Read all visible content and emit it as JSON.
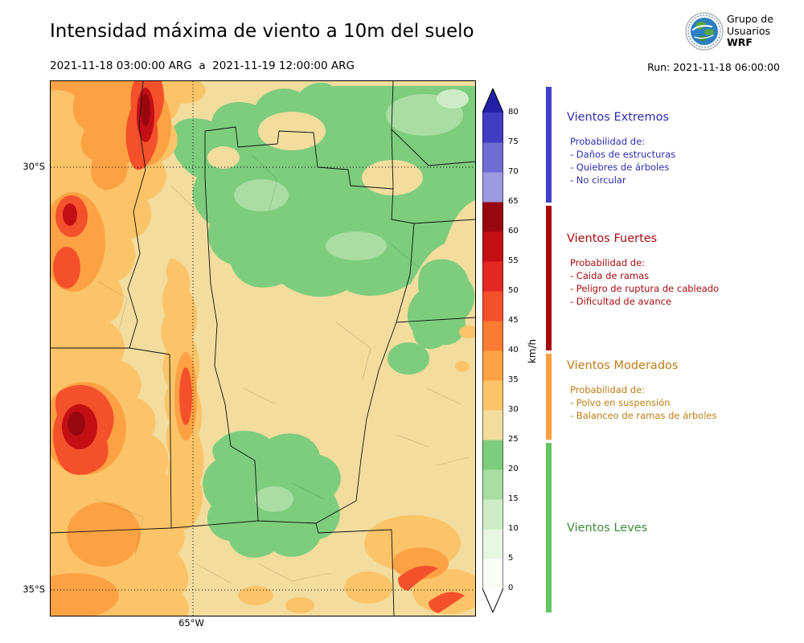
{
  "header": {
    "title": "Intensidad máxima de viento a 10m del suelo",
    "subtitle": "2021-11-18 03:00:00 ARG  a  2021-11-19 12:00:00 ARG",
    "run_label": "Run: 2021-11-18 06:00:00",
    "logo": {
      "line1": "Grupo de",
      "line2": "Usuarios",
      "line3": "WRF"
    }
  },
  "map": {
    "labels": {
      "lat_top": "30°S",
      "lat_bottom": "35°S",
      "lon": "65°W"
    }
  },
  "chart_data": {
    "type": "heatmap",
    "title": "Intensidad máxima de viento a 10m del suelo",
    "period": {
      "start": "2021-11-18 03:00:00 ARG",
      "end": "2021-11-19 12:00:00 ARG"
    },
    "model_run": "2021-11-18 06:00:00",
    "colorbar": {
      "label": "km/h",
      "ticks": [
        0,
        5,
        10,
        15,
        20,
        25,
        30,
        35,
        40,
        45,
        50,
        55,
        60,
        65,
        70,
        75,
        80
      ],
      "segments": [
        {
          "from": 0,
          "to": 5,
          "color": "#f9fdf6"
        },
        {
          "from": 5,
          "to": 10,
          "color": "#e7f6e1"
        },
        {
          "from": 10,
          "to": 15,
          "color": "#cdecc5"
        },
        {
          "from": 15,
          "to": 20,
          "color": "#a9dda2"
        },
        {
          "from": 20,
          "to": 25,
          "color": "#7dcd7d"
        },
        {
          "from": 25,
          "to": 30,
          "color": "#f2dc9e"
        },
        {
          "from": 30,
          "to": 35,
          "color": "#fcc469"
        },
        {
          "from": 35,
          "to": 40,
          "color": "#fda244"
        },
        {
          "from": 40,
          "to": 45,
          "color": "#fc7b33"
        },
        {
          "from": 45,
          "to": 50,
          "color": "#f4502b"
        },
        {
          "from": 50,
          "to": 55,
          "color": "#e22822"
        },
        {
          "from": 55,
          "to": 60,
          "color": "#c30f14"
        },
        {
          "from": 60,
          "to": 65,
          "color": "#99070e"
        },
        {
          "from": 65,
          "to": 70,
          "color": "#9d9ae0"
        },
        {
          "from": 70,
          "to": 75,
          "color": "#6f6cd4"
        },
        {
          "from": 75,
          "to": 80,
          "color": "#413dc2"
        }
      ],
      "over_color": "#2320a8",
      "under_color": "#ffffff"
    },
    "geo_ticks": {
      "lat": [
        "30°S",
        "35°S"
      ],
      "lon": [
        "65°W"
      ]
    }
  },
  "legend": {
    "sections": [
      {
        "title": "Vientos Extremos",
        "text_color": "#2d2daa",
        "bar_color": "#4340c6",
        "kmh_range": [
          65,
          80
        ],
        "lines": [
          "Probabilidad de:",
          "- Daños de estructuras",
          "- Quiebres de árboles",
          "- No circular"
        ]
      },
      {
        "title": "Vientos Fuertes",
        "text_color": "#a50d12",
        "bar_color": "#a50d12",
        "kmh_range": [
          40,
          65
        ],
        "lines": [
          "Probabilidad de:",
          "- Caida de ramas",
          "- Peligro de ruptura de cableado",
          "- Dificultad de avance"
        ]
      },
      {
        "title": "Vientos Moderados",
        "text_color": "#bc7c15",
        "bar_color": "#fd9f3e",
        "kmh_range": [
          25,
          40
        ],
        "lines": [
          "Probabilidad de:",
          "- Polvo en suspensión",
          "- Balanceo de ramas de árboles"
        ]
      },
      {
        "title": "Vientos Leves",
        "text_color": "#3d8b3d",
        "bar_color": "#63c663",
        "kmh_range": [
          0,
          25
        ],
        "lines": []
      }
    ]
  }
}
